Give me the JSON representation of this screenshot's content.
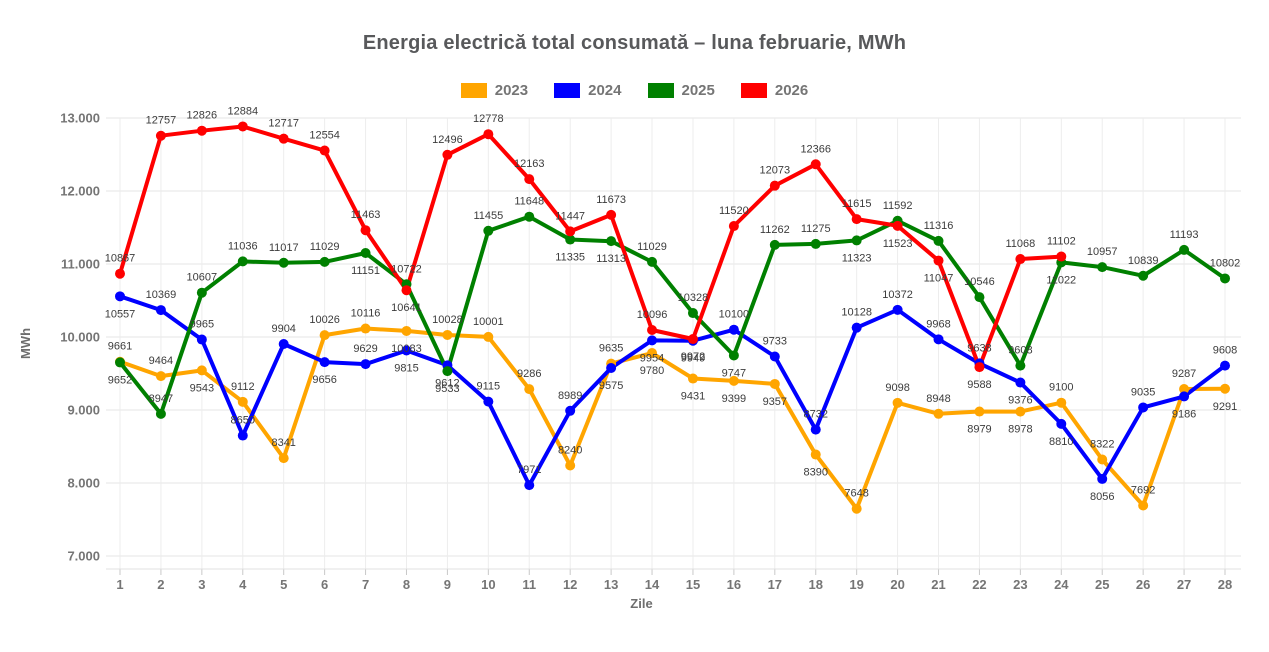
{
  "chart_data": {
    "type": "line",
    "title": "Energia electrică total consumată – luna februarie, MWh",
    "xlabel": "Zile",
    "ylabel": "MWh",
    "xticks": [
      "1",
      "2",
      "3",
      "4",
      "5",
      "6",
      "7",
      "8",
      "9",
      "10",
      "11",
      "12",
      "13",
      "14",
      "15",
      "16",
      "17",
      "18",
      "19",
      "20",
      "21",
      "22",
      "23",
      "24",
      "25",
      "26",
      "27",
      "28"
    ],
    "yticks": [
      "7.000",
      "8.000",
      "9.000",
      "10.000",
      "11.000",
      "12.000",
      "13.000"
    ],
    "ylim": [
      7000,
      13000
    ],
    "grid": true,
    "legend_position": "top",
    "point_labels": true,
    "series": [
      {
        "name": "2023",
        "color": "#FFA500",
        "values": [
          9661,
          9464,
          9543,
          9112,
          8341,
          10026,
          10116,
          10083,
          10028,
          10001,
          9286,
          8240,
          9635,
          9780,
          9431,
          9399,
          9357,
          8390,
          7648,
          9098,
          8948,
          8979,
          8978,
          9100,
          8322,
          7692,
          9287,
          9291
        ]
      },
      {
        "name": "2024",
        "color": "#0000FF",
        "values": [
          10557,
          10369,
          9965,
          8650,
          9904,
          9656,
          9629,
          9815,
          9612,
          9115,
          7971,
          8989,
          9575,
          9954,
          9949,
          10100,
          9733,
          8732,
          10128,
          10372,
          9968,
          9638,
          9376,
          8810,
          8056,
          9035,
          9186,
          9608
        ]
      },
      {
        "name": "2025",
        "color": "#008000",
        "values": [
          9652,
          8947,
          10607,
          11036,
          11017,
          11029,
          11151,
          10722,
          9533,
          11455,
          11648,
          11335,
          11313,
          11029,
          10328,
          9747,
          11262,
          11275,
          11323,
          11592,
          11316,
          10546,
          9608,
          11022,
          10957,
          10839,
          11193,
          10802
        ]
      },
      {
        "name": "2026",
        "color": "#FF0000",
        "values": [
          10867,
          12757,
          12826,
          12884,
          12717,
          12554,
          11463,
          10641,
          12496,
          12778,
          12163,
          11447,
          11673,
          10096,
          9972,
          11520,
          12073,
          12366,
          11615,
          11523,
          11047,
          9588,
          11068,
          11102
        ]
      }
    ]
  }
}
